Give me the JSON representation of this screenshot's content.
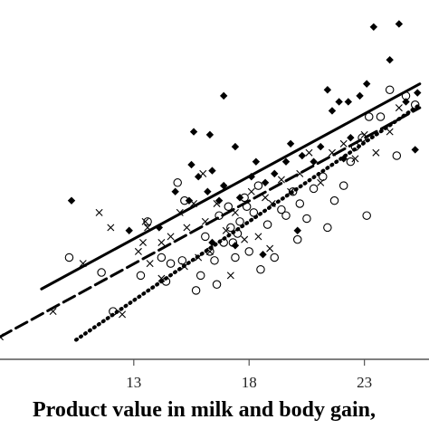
{
  "chart_data": {
    "type": "scatter",
    "title": "",
    "xlabel": "Product value in milk and body gain,",
    "ylabel": "",
    "xlim": [
      7.2,
      25.8
    ],
    "ylim": [
      0,
      12
    ],
    "x_ticks": [
      "13",
      "18",
      "23"
    ],
    "x_tick_values": [
      13,
      18,
      23
    ],
    "grid": false,
    "legend": "none",
    "series": [
      {
        "marker": "diamond-filled",
        "line": "solid",
        "fit": [
          [
            9,
            2.35
          ],
          [
            25.4,
            9.2
          ]
        ],
        "points": [
          [
            10.3,
            5.3
          ],
          [
            12.8,
            4.3
          ],
          [
            14.1,
            4.4
          ],
          [
            14.8,
            5.6
          ],
          [
            15.4,
            5.3
          ],
          [
            15.5,
            6.5
          ],
          [
            15.6,
            7.6
          ],
          [
            15.8,
            6.1
          ],
          [
            16.2,
            5.6
          ],
          [
            16.3,
            7.5
          ],
          [
            16.4,
            6.3
          ],
          [
            16.7,
            5.3
          ],
          [
            16.9,
            5.8
          ],
          [
            16.9,
            8.8
          ],
          [
            17.4,
            7.1
          ],
          [
            17.4,
            3.8
          ],
          [
            17.6,
            5.4
          ],
          [
            18.1,
            6.1
          ],
          [
            18.3,
            6.6
          ],
          [
            18.7,
            5.9
          ],
          [
            19.1,
            6.2
          ],
          [
            19.6,
            6.6
          ],
          [
            19.8,
            7.2
          ],
          [
            20.3,
            6.8
          ],
          [
            20.8,
            6.6
          ],
          [
            21.1,
            7.1
          ],
          [
            21.4,
            9.0
          ],
          [
            21.6,
            8.3
          ],
          [
            21.9,
            8.6
          ],
          [
            22.1,
            6.7
          ],
          [
            22.3,
            8.6
          ],
          [
            22.4,
            7.4
          ],
          [
            22.8,
            8.8
          ],
          [
            23.1,
            9.2
          ],
          [
            23.4,
            11.1
          ],
          [
            24.1,
            10.0
          ],
          [
            24.5,
            11.2
          ],
          [
            24.8,
            8.6
          ],
          [
            25.2,
            7.0
          ],
          [
            25.3,
            8.9
          ],
          [
            18.6,
            3.5
          ],
          [
            16.4,
            3.9
          ],
          [
            20.1,
            4.3
          ]
        ]
      },
      {
        "marker": "circle-open",
        "line": "dotted",
        "fit": [
          [
            10.5,
            0.65
          ],
          [
            25.4,
            8.5
          ]
        ],
        "points": [
          [
            10.2,
            3.4
          ],
          [
            11.6,
            2.9
          ],
          [
            13.3,
            2.8
          ],
          [
            13.6,
            4.6
          ],
          [
            14.2,
            3.4
          ],
          [
            14.6,
            3.2
          ],
          [
            14.9,
            5.9
          ],
          [
            15.1,
            3.3
          ],
          [
            15.2,
            5.3
          ],
          [
            15.7,
            2.3
          ],
          [
            15.9,
            2.8
          ],
          [
            16.1,
            4.1
          ],
          [
            16.3,
            3.6
          ],
          [
            16.5,
            3.3
          ],
          [
            16.7,
            4.8
          ],
          [
            16.9,
            3.9
          ],
          [
            17.1,
            5.1
          ],
          [
            17.2,
            4.4
          ],
          [
            17.3,
            3.9
          ],
          [
            17.4,
            3.4
          ],
          [
            17.5,
            4.2
          ],
          [
            17.6,
            4.6
          ],
          [
            17.8,
            5.4
          ],
          [
            17.9,
            5.1
          ],
          [
            18.0,
            3.6
          ],
          [
            18.2,
            4.9
          ],
          [
            18.4,
            5.8
          ],
          [
            18.8,
            4.5
          ],
          [
            19.1,
            3.4
          ],
          [
            19.4,
            5.0
          ],
          [
            19.6,
            4.8
          ],
          [
            19.9,
            5.6
          ],
          [
            20.2,
            5.2
          ],
          [
            20.5,
            4.7
          ],
          [
            20.8,
            5.7
          ],
          [
            21.2,
            6.1
          ],
          [
            21.4,
            4.4
          ],
          [
            21.7,
            5.3
          ],
          [
            22.1,
            5.8
          ],
          [
            22.4,
            6.6
          ],
          [
            22.6,
            7.1
          ],
          [
            22.9,
            7.4
          ],
          [
            23.2,
            8.1
          ],
          [
            23.7,
            8.1
          ],
          [
            24.1,
            9.0
          ],
          [
            24.4,
            6.8
          ],
          [
            24.8,
            8.8
          ],
          [
            25.2,
            8.5
          ],
          [
            16.6,
            2.5
          ],
          [
            14.4,
            2.6
          ],
          [
            18.5,
            3.0
          ],
          [
            23.1,
            4.8
          ],
          [
            20.1,
            4.0
          ],
          [
            12.1,
            1.6
          ]
        ]
      },
      {
        "marker": "cross",
        "line": "dashed",
        "fit": [
          [
            7.2,
            0.75
          ],
          [
            25.4,
            8.4
          ]
        ],
        "points": [
          [
            7.2,
            0.75
          ],
          [
            9.5,
            1.6
          ],
          [
            10.8,
            3.2
          ],
          [
            11.5,
            4.9
          ],
          [
            12.0,
            4.4
          ],
          [
            12.5,
            1.5
          ],
          [
            13.2,
            3.6
          ],
          [
            13.4,
            3.9
          ],
          [
            13.5,
            4.6
          ],
          [
            13.7,
            3.2
          ],
          [
            14.2,
            3.9
          ],
          [
            14.6,
            4.1
          ],
          [
            15.0,
            4.9
          ],
          [
            15.2,
            3.1
          ],
          [
            15.3,
            4.4
          ],
          [
            15.6,
            5.2
          ],
          [
            15.8,
            3.4
          ],
          [
            16.0,
            6.2
          ],
          [
            16.1,
            4.6
          ],
          [
            16.3,
            3.6
          ],
          [
            16.6,
            5.2
          ],
          [
            17.0,
            4.3
          ],
          [
            17.2,
            2.8
          ],
          [
            17.4,
            4.9
          ],
          [
            17.8,
            4.0
          ],
          [
            18.1,
            5.6
          ],
          [
            18.4,
            4.1
          ],
          [
            18.7,
            5.4
          ],
          [
            19.0,
            5.2
          ],
          [
            19.4,
            6.0
          ],
          [
            19.8,
            5.6
          ],
          [
            20.2,
            6.2
          ],
          [
            20.6,
            6.9
          ],
          [
            21.1,
            5.9
          ],
          [
            21.6,
            6.9
          ],
          [
            22.1,
            7.2
          ],
          [
            22.6,
            6.7
          ],
          [
            23.0,
            7.5
          ],
          [
            23.5,
            6.9
          ],
          [
            24.1,
            7.6
          ],
          [
            24.5,
            8.4
          ],
          [
            14.2,
            2.7
          ],
          [
            13.6,
            4.4
          ],
          [
            18.9,
            3.7
          ]
        ]
      }
    ]
  }
}
